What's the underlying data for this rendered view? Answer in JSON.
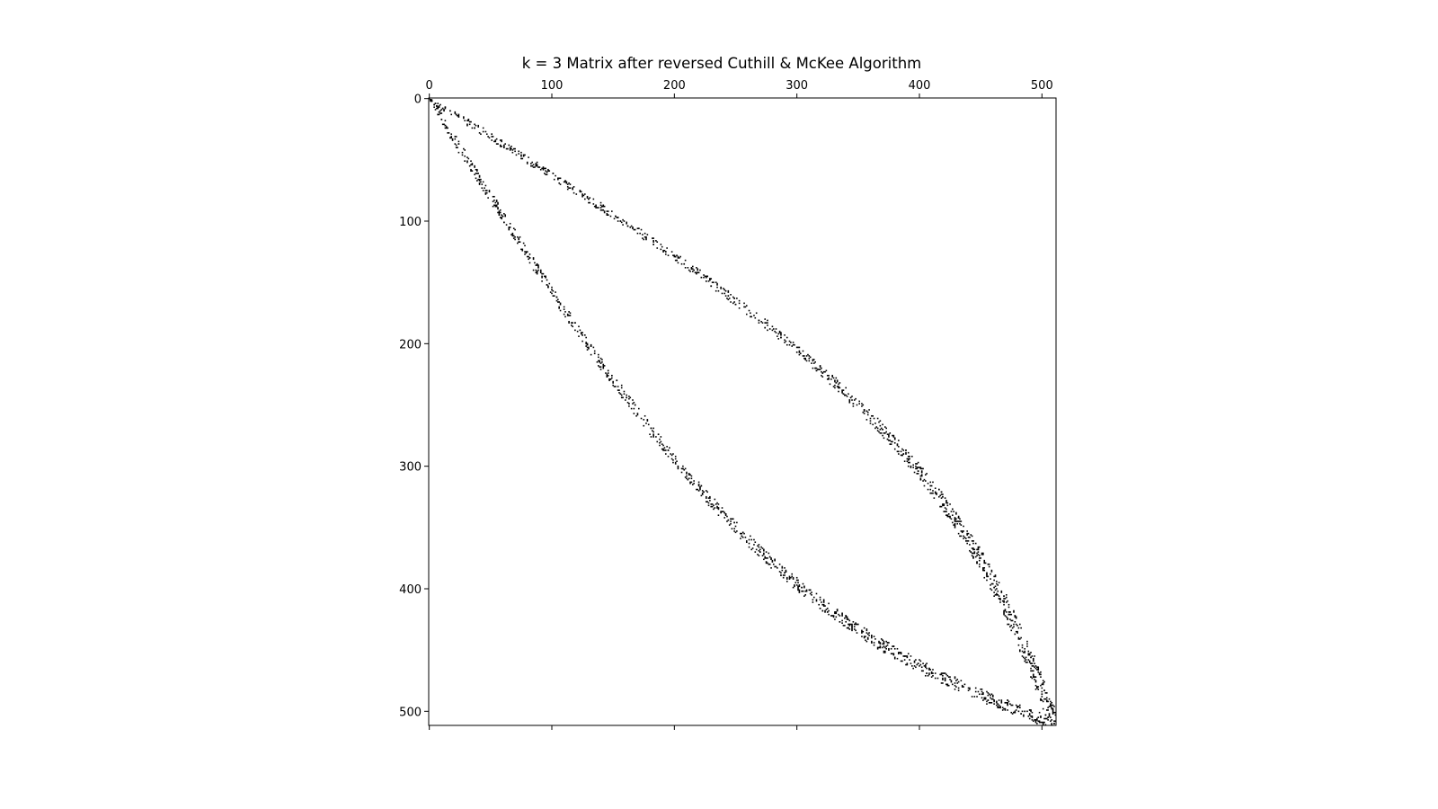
{
  "chart_data": {
    "type": "heatmap",
    "title": "k = 3 Matrix after reversed Cuthill & McKee Algorithm",
    "xlabel": "",
    "ylabel": "",
    "matrix_size": 512,
    "xlim": [
      0,
      512
    ],
    "ylim": [
      512,
      0
    ],
    "x_ticks": [
      0,
      100,
      200,
      300,
      400,
      500
    ],
    "y_ticks": [
      0,
      100,
      200,
      300,
      400,
      500
    ],
    "x_tick_position": "top",
    "grid": false,
    "legend": "none",
    "marker_color": "#000000",
    "pattern": "symmetric sparsity pattern: two off-diagonal bands meeting at the corners (0,0) and (511,511), bulging to maximum offset of about 100 at the middle row",
    "band_max_offset": 100,
    "approx_nonzeros_per_band": 1100
  }
}
